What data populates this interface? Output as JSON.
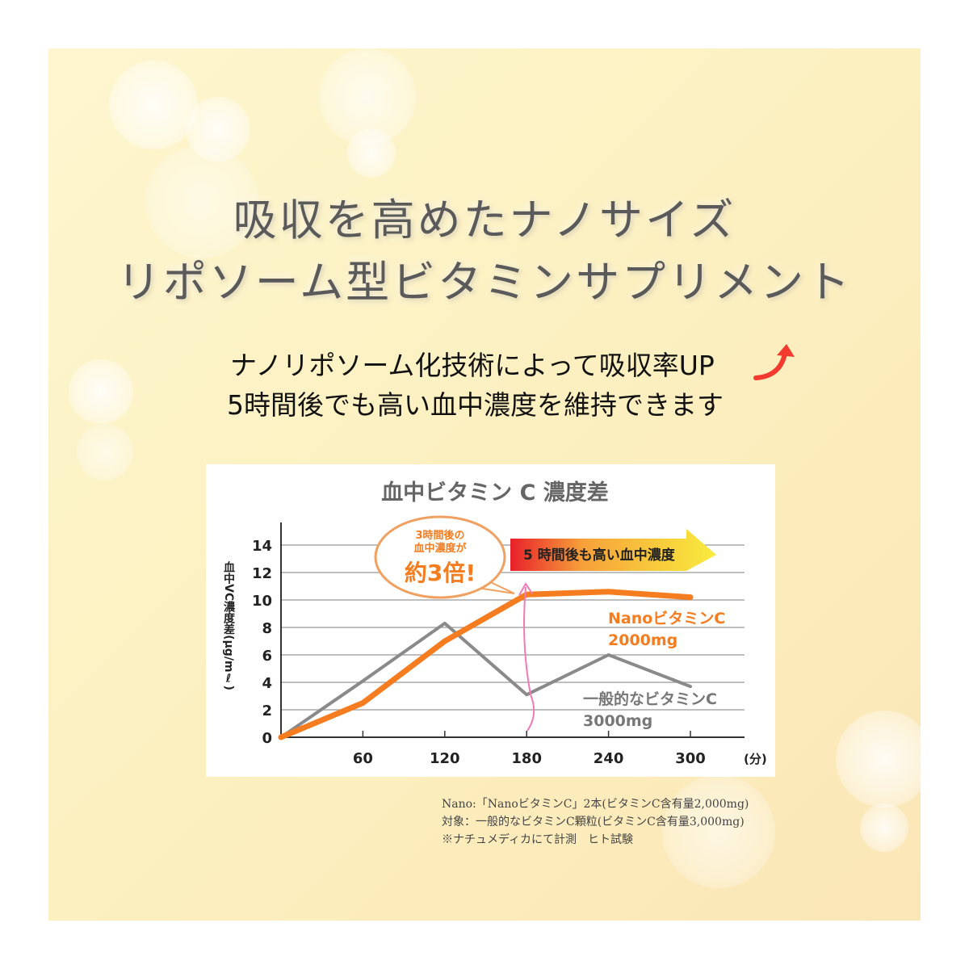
{
  "headline": {
    "line1": "吸収を高めたナノサイズ",
    "line2": "リポソーム型ビタミンサプリメント"
  },
  "subcopy": {
    "line1": "ナノリポソーム化技術によって吸収率UP",
    "line2": "5時間後でも高い血中濃度を維持できます",
    "icon": "red-up-arrow-icon"
  },
  "chart_data": {
    "type": "line",
    "title": "血中ビタミン C 濃度差",
    "ylabel": "血中VC濃度差(μg/mℓ)",
    "xunit": "(分)",
    "x": [
      0,
      60,
      120,
      180,
      240,
      300
    ],
    "xticks": [
      "60",
      "120",
      "180",
      "240",
      "300"
    ],
    "yticks": [
      "0",
      "2",
      "4",
      "6",
      "8",
      "10",
      "12",
      "14"
    ],
    "ylim": [
      0,
      15
    ],
    "grid": true,
    "series": [
      {
        "name": "NanoビタミンC",
        "name2": "2000mg",
        "color": "#f57c1f",
        "values": [
          0,
          2.5,
          7.0,
          10.4,
          10.6,
          10.2
        ]
      },
      {
        "name": "一般的なビタミンC",
        "name2": "3000mg",
        "color": "#8a8a8a",
        "values": [
          0,
          4.1,
          8.3,
          3.1,
          6.0,
          3.7
        ]
      }
    ],
    "annotations": {
      "bubble": [
        "3時間後の",
        "血中濃度が",
        "約3倍!"
      ],
      "banner": "5 時間後も高い血中濃度"
    }
  },
  "footnotes": [
    "Nano:「NanoビタミンC」2本(ビタミンC含有量2,000mg)",
    "対象：一般的なビタミンC顆粒(ビタミンC含有量3,000mg)",
    "※ナチュメディカにて計測　ヒト試験"
  ]
}
